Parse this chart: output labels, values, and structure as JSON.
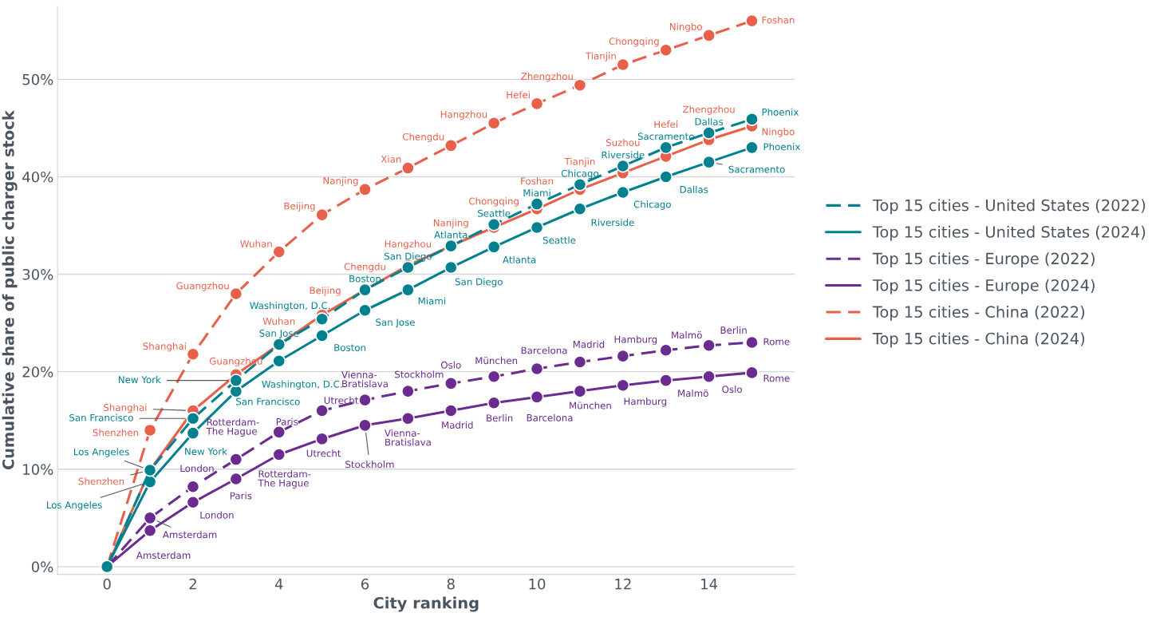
{
  "chart_data": {
    "type": "line",
    "xlabel": "City ranking",
    "ylabel": "Cumulative share of public charger stock",
    "x": [
      0,
      1,
      2,
      3,
      4,
      5,
      6,
      7,
      8,
      9,
      10,
      11,
      12,
      13,
      14,
      15
    ],
    "xlim": [
      -1.15,
      16.0
    ],
    "xticks": [
      0,
      2,
      4,
      6,
      8,
      10,
      12,
      14
    ],
    "ylim": [
      -0.8,
      57.5
    ],
    "yticks": [
      {
        "value": 0,
        "label": "0%"
      },
      {
        "value": 10,
        "label": "10%"
      },
      {
        "value": 20,
        "label": "20%"
      },
      {
        "value": 30,
        "label": "30%"
      },
      {
        "value": 40,
        "label": "40%"
      },
      {
        "value": 50,
        "label": "50%"
      }
    ],
    "grid": "y",
    "legend": "right",
    "marker": "circle",
    "series": [
      {
        "name": "Top 15 cities - United States (2022)",
        "color": "#00818f",
        "line_style": "dashed",
        "values": [
          0,
          9.9,
          15.2,
          19.1,
          22.8,
          25.4,
          28.4,
          30.7,
          32.9,
          35.1,
          37.2,
          39.2,
          41.1,
          43.0,
          44.5,
          45.9
        ],
        "value_labels": [
          null,
          "Los Angeles",
          "San Francisco",
          "New York",
          "San Jose",
          "Washington, D.C.",
          "Boston",
          "San Diego",
          "Atlanta",
          "Seattle",
          "Miami",
          "Chicago",
          "Riverside",
          "Sacramento",
          "Dallas",
          "Phoenix"
        ]
      },
      {
        "name": "Top 15 cities - United States (2024)",
        "color": "#00818f",
        "line_style": "solid",
        "values": [
          0,
          8.7,
          13.7,
          18.0,
          21.1,
          23.7,
          26.3,
          28.4,
          30.7,
          32.8,
          34.8,
          36.7,
          38.4,
          40.0,
          41.5,
          43.0
        ],
        "value_labels": [
          null,
          "Los Angeles",
          "New York",
          "San Francisco",
          "Washington, D.C.",
          "Boston",
          "San Jose",
          "Miami",
          "San Diego",
          "Atlanta",
          "Seattle",
          "Riverside",
          "Chicago",
          "Dallas",
          "Sacramento",
          "Phoenix"
        ]
      },
      {
        "name": "Top 15 cities - Europe (2022)",
        "color": "#6a2c91",
        "line_style": "dashed",
        "values": [
          0,
          5.0,
          8.2,
          11.0,
          13.8,
          16.0,
          17.1,
          18.0,
          18.8,
          19.5,
          20.3,
          21.0,
          21.6,
          22.2,
          22.7,
          23.0
        ],
        "value_labels": [
          null,
          "Amsterdam",
          "London",
          "Rotterdam-\nThe Hague",
          "Paris",
          "Utrecht",
          "Vienna-\nBratislava",
          "Stockholm",
          "Oslo",
          "München",
          "Barcelona",
          "Madrid",
          "Hamburg",
          "Malmö",
          "Berlin",
          "Rome"
        ]
      },
      {
        "name": "Top 15 cities - Europe (2024)",
        "color": "#6a2c91",
        "line_style": "solid",
        "values": [
          0,
          3.7,
          6.6,
          9.0,
          11.5,
          13.1,
          14.5,
          15.2,
          16.0,
          16.8,
          17.4,
          18.0,
          18.6,
          19.1,
          19.5,
          19.9
        ],
        "value_labels": [
          null,
          "Amsterdam",
          "London",
          "Paris",
          "Rotterdam-\nThe Hague",
          "Utrecht",
          "Stockholm",
          "Vienna-\nBratislava",
          "Madrid",
          "Berlin",
          "Barcelona",
          "München",
          "Hamburg",
          "Malmö",
          "Oslo",
          "Rome"
        ]
      },
      {
        "name": "Top 15 cities - China (2022)",
        "color": "#e9604a",
        "line_style": "dashed",
        "values": [
          0,
          14.0,
          21.8,
          28.0,
          32.3,
          36.1,
          38.7,
          40.9,
          43.2,
          45.5,
          47.5,
          49.4,
          51.5,
          53.0,
          54.5,
          56.0
        ],
        "value_labels": [
          null,
          "Shenzhen",
          "Shanghai",
          "Guangzhou",
          "Wuhan",
          "Beijing",
          "Nanjing",
          "Xian",
          "Chengdu",
          "Hangzhou",
          "Hefei",
          "Zhengzhou",
          "Tianjin",
          "Chongqing",
          "Ningbo",
          "Foshan"
        ]
      },
      {
        "name": "Top 15 cities - China (2024)",
        "color": "#e9604a",
        "line_style": "solid",
        "values": [
          0,
          9.9,
          16.0,
          19.7,
          22.8,
          25.8,
          28.4,
          30.9,
          32.9,
          34.8,
          36.7,
          38.7,
          40.4,
          42.1,
          43.8,
          45.2
        ],
        "value_labels": [
          null,
          "Shenzhen",
          "Shanghai",
          "Guangzhou",
          "Wuhan",
          "Beijing",
          "Chengdu",
          "Hangzhou",
          "Nanjing",
          "Chongqing",
          "Foshan",
          "Tianjin",
          "Suzhou",
          "Hefei",
          "Zhengzhou",
          "Ningbo"
        ]
      }
    ]
  }
}
